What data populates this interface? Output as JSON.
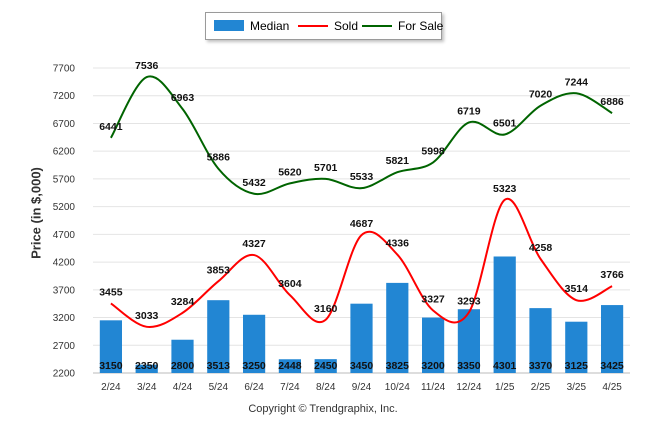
{
  "chart_data": {
    "type": "bar",
    "categories": [
      "2/24",
      "3/24",
      "4/24",
      "5/24",
      "6/24",
      "7/24",
      "8/24",
      "9/24",
      "10/24",
      "11/24",
      "12/24",
      "1/25",
      "2/25",
      "3/25",
      "4/25"
    ],
    "series": [
      {
        "name": "Median",
        "type": "bar",
        "color": "#2286d3",
        "values": [
          3150,
          2350,
          2800,
          3513,
          3250,
          2448,
          2450,
          3450,
          3825,
          3200,
          3350,
          4301,
          3370,
          3125,
          3425
        ]
      },
      {
        "name": "Sold",
        "type": "line",
        "color": "#ff0000",
        "values": [
          3455,
          3033,
          3284,
          3853,
          4327,
          3604,
          3160,
          4687,
          4336,
          3327,
          3293,
          5323,
          4258,
          3514,
          3766
        ]
      },
      {
        "name": "For Sale",
        "type": "line",
        "color": "#006400",
        "values": [
          6441,
          7536,
          6963,
          5886,
          5432,
          5620,
          5701,
          5533,
          5821,
          5998,
          6719,
          6501,
          7020,
          7244,
          6886
        ]
      }
    ],
    "ylabel": "Price (in $,000)",
    "yticks": [
      2200,
      2700,
      3200,
      3700,
      4200,
      4700,
      5200,
      5700,
      6200,
      6700,
      7200,
      7700
    ],
    "ylim": [
      2200,
      7700
    ],
    "grid": true,
    "legend": "top-center"
  },
  "footer": "Copyright © Trendgraphix, Inc."
}
